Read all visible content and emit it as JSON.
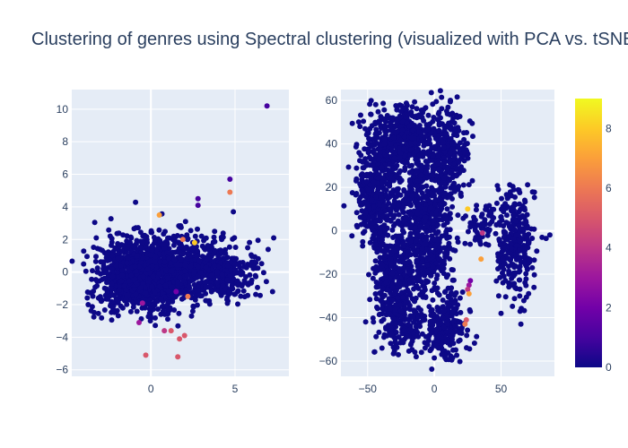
{
  "chart_data": {
    "title": "Clustering of genres using Spectral clustering (visualized with PCA vs. tSNE)",
    "colorscale": [
      "#0d0887",
      "#46039f",
      "#7201a8",
      "#9c179e",
      "#bd3786",
      "#d8576b",
      "#ed7953",
      "#fb9f3a",
      "#fdca26",
      "#f0f921"
    ],
    "colorbar": {
      "min": 0,
      "max": 9,
      "ticks": [
        "0",
        "2",
        "4",
        "6",
        "8"
      ]
    },
    "subplots": [
      {
        "name": "PCA",
        "type": "scatter",
        "xlim": [
          -4.7,
          8.2
        ],
        "ylim": [
          -6.4,
          11.2
        ],
        "xticks": [
          "0",
          "5"
        ],
        "yticks": [
          "−6",
          "−4",
          "−2",
          "0",
          "2",
          "4",
          "6",
          "8",
          "10"
        ],
        "clusters": [
          {
            "cx": -0.6,
            "cy": -0.4,
            "sx": 1.3,
            "sy": 1.0,
            "n": 1200,
            "c": 0
          },
          {
            "cx": 3.8,
            "cy": -0.1,
            "sx": 1.3,
            "sy": 0.9,
            "n": 450,
            "c": 0
          },
          {
            "cx": 1.0,
            "cy": 0.8,
            "sx": 1.6,
            "sy": 1.0,
            "n": 300,
            "c": 0
          }
        ],
        "points": [
          {
            "x": 6.9,
            "y": 10.2,
            "c": 1
          },
          {
            "x": 4.7,
            "y": 5.7,
            "c": 1
          },
          {
            "x": 4.7,
            "y": 4.9,
            "c": 6
          },
          {
            "x": 2.8,
            "y": 4.5,
            "c": 1
          },
          {
            "x": 2.8,
            "y": 4.1,
            "c": 1
          },
          {
            "x": 4.9,
            "y": 3.7,
            "c": 0
          },
          {
            "x": 7.3,
            "y": 2.1,
            "c": 0
          },
          {
            "x": 0.5,
            "y": 3.5,
            "c": 7
          },
          {
            "x": 2.6,
            "y": 1.8,
            "c": 8
          },
          {
            "x": 1.9,
            "y": 2.0,
            "c": 6
          },
          {
            "x": -0.3,
            "y": -5.1,
            "c": 5
          },
          {
            "x": 1.6,
            "y": -5.2,
            "c": 5
          },
          {
            "x": 1.2,
            "y": -3.6,
            "c": 5
          },
          {
            "x": 0.8,
            "y": -3.6,
            "c": 4
          },
          {
            "x": 2.0,
            "y": -3.9,
            "c": 5
          },
          {
            "x": 1.7,
            "y": -4.1,
            "c": 5
          },
          {
            "x": -0.7,
            "y": -3.1,
            "c": 3
          },
          {
            "x": 2.2,
            "y": -1.5,
            "c": 6
          },
          {
            "x": -0.5,
            "y": -1.9,
            "c": 3
          },
          {
            "x": 1.5,
            "y": -1.2,
            "c": 2
          }
        ]
      },
      {
        "name": "tSNE",
        "type": "scatter",
        "xlim": [
          -70,
          90
        ],
        "ylim": [
          -67,
          65
        ],
        "xticks": [
          "−50",
          "0",
          "50"
        ],
        "yticks": [
          "−60",
          "−40",
          "−20",
          "0",
          "20",
          "40",
          "60"
        ],
        "clusters": [
          {
            "cx": -40,
            "cy": 25,
            "sx": 8,
            "sy": 14,
            "n": 420,
            "c": 0
          },
          {
            "cx": -20,
            "cy": 44,
            "sx": 9,
            "sy": 7,
            "n": 260,
            "c": 0
          },
          {
            "cx": 10,
            "cy": 38,
            "sx": 8,
            "sy": 10,
            "n": 260,
            "c": 0
          },
          {
            "cx": -48,
            "cy": 8,
            "sx": 6,
            "sy": 7,
            "n": 120,
            "c": 0
          },
          {
            "cx": -8,
            "cy": 15,
            "sx": 12,
            "sy": 12,
            "n": 380,
            "c": 0
          },
          {
            "cx": -30,
            "cy": -18,
            "sx": 8,
            "sy": 11,
            "n": 300,
            "c": 0
          },
          {
            "cx": -5,
            "cy": -12,
            "sx": 10,
            "sy": 10,
            "n": 300,
            "c": 0
          },
          {
            "cx": -25,
            "cy": -42,
            "sx": 9,
            "sy": 7,
            "n": 180,
            "c": 0
          },
          {
            "cx": 8,
            "cy": -45,
            "sx": 8,
            "sy": 8,
            "n": 220,
            "c": 0
          },
          {
            "cx": 60,
            "cy": -5,
            "sx": 7,
            "sy": 12,
            "n": 300,
            "c": 0
          },
          {
            "cx": 35,
            "cy": 2,
            "sx": 6,
            "sy": 5,
            "n": 60,
            "c": 0
          }
        ],
        "points": [
          {
            "x": 25,
            "y": 10,
            "c": 8
          },
          {
            "x": 48,
            "y": 19,
            "c": 0
          },
          {
            "x": 36,
            "y": -1,
            "c": 4
          },
          {
            "x": 35,
            "y": -13,
            "c": 7
          },
          {
            "x": 27,
            "y": -23,
            "c": 2
          },
          {
            "x": 26,
            "y": -25,
            "c": 3
          },
          {
            "x": 25,
            "y": -27,
            "c": 4
          },
          {
            "x": 26,
            "y": -29,
            "c": 7
          },
          {
            "x": 24,
            "y": -41,
            "c": 5
          },
          {
            "x": 23,
            "y": -43,
            "c": 6
          },
          {
            "x": 50,
            "y": -38,
            "c": 0
          }
        ]
      }
    ]
  }
}
